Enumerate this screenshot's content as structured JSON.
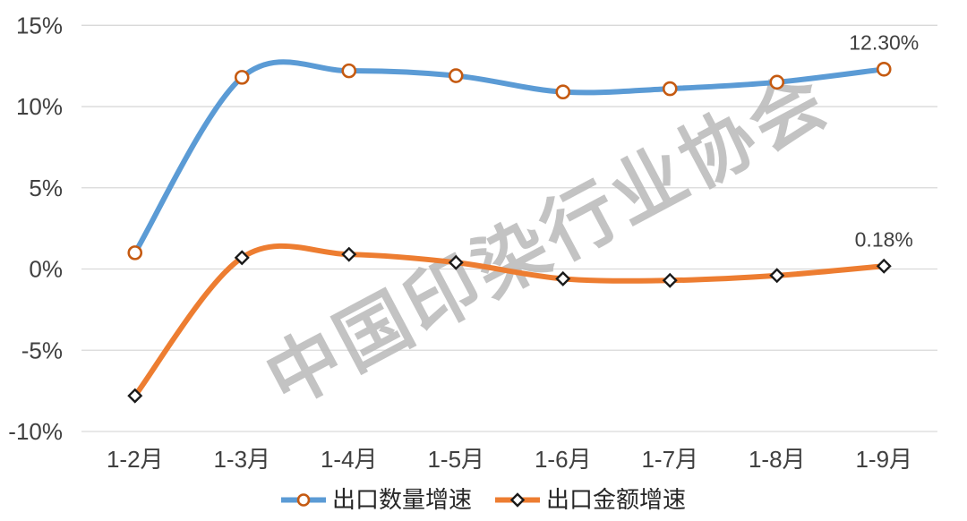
{
  "chart_data": {
    "type": "line",
    "categories": [
      "1-2月",
      "1-3月",
      "1-4月",
      "1-5月",
      "1-6月",
      "1-7月",
      "1-8月",
      "1-9月"
    ],
    "series": [
      {
        "name": "出口数量增速",
        "values": [
          1.0,
          11.8,
          12.2,
          11.9,
          10.9,
          11.1,
          11.5,
          12.3
        ],
        "color": "#5B9BD5",
        "marker": "circle",
        "marker_fill": "#FFFFFF",
        "marker_stroke": "#C55A11"
      },
      {
        "name": "出口金额增速",
        "values": [
          -7.8,
          0.7,
          0.9,
          0.4,
          -0.6,
          -0.7,
          -0.4,
          0.18
        ],
        "color": "#ED7D31",
        "marker": "diamond",
        "marker_fill": "#FFFFFF",
        "marker_stroke": "#1A1A1A"
      }
    ],
    "y_ticks": [
      {
        "value": 15,
        "label": "15%"
      },
      {
        "value": 10,
        "label": "10%"
      },
      {
        "value": 5,
        "label": "5%"
      },
      {
        "value": 0,
        "label": "0%"
      },
      {
        "value": -5,
        "label": "-5%"
      },
      {
        "value": -10,
        "label": "-10%"
      }
    ],
    "ylim": [
      -10,
      15
    ],
    "grid": true,
    "legend_position": "bottom",
    "line_smoothing": true,
    "annotations": [
      {
        "series": 0,
        "point": 7,
        "text": "12.30%"
      },
      {
        "series": 1,
        "point": 7,
        "text": "0.18%"
      }
    ],
    "watermark": "中国印染行业协会",
    "title": "",
    "xlabel": "",
    "ylabel": ""
  },
  "colors": {
    "background": "#FFFFFF",
    "grid": "#D9D9D9",
    "axis_text": "#404040",
    "data_label_text": "#404040",
    "legend_text": "#262626",
    "watermark": "#B9B9B9"
  }
}
